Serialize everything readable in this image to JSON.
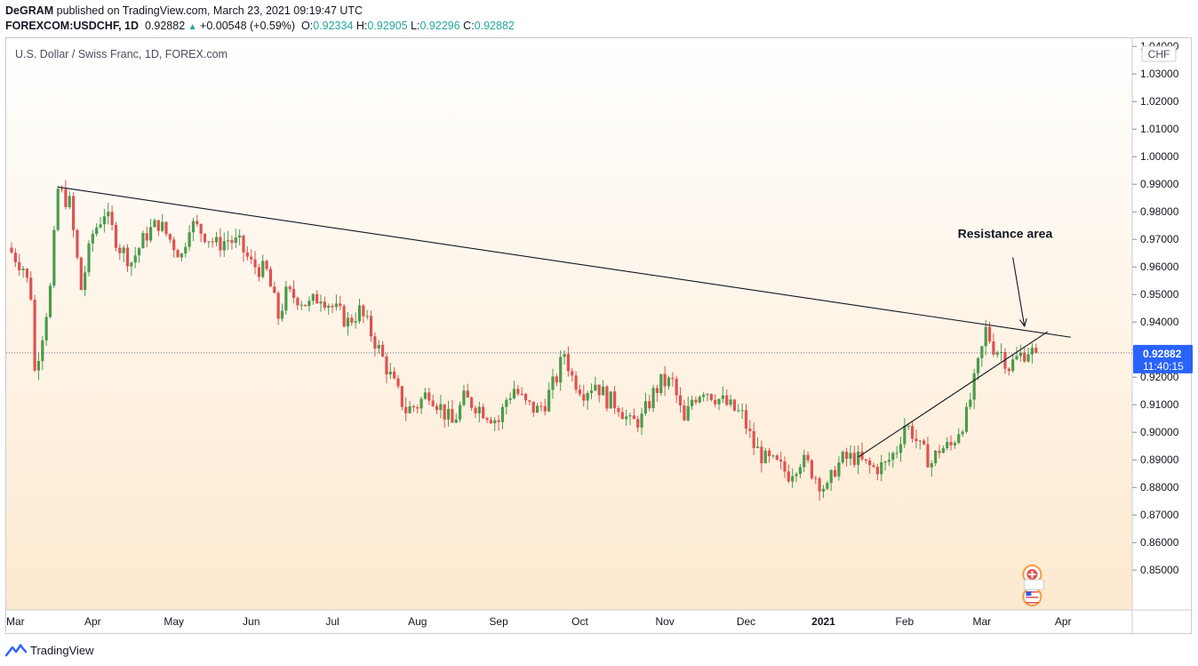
{
  "header": {
    "author": "DeGRAM",
    "published": "published on TradingView.com, March 23, 2021 09:19:47 UTC",
    "symbol": "FOREXCOM:USDCHF, 1D",
    "last": "0.92882",
    "change": "+0.00548 (+0.59%)",
    "o_label": "O:",
    "o": "0.92334",
    "h_label": "H:",
    "h": "0.92905",
    "l_label": "L:",
    "l": "0.92296",
    "c_label": "C:",
    "c": "0.92882"
  },
  "pane_title": "U.S. Dollar / Swiss Franc, 1D, FOREX.com",
  "footer": {
    "brand": "TradingView"
  },
  "colors": {
    "up": "#4c9a4c",
    "down": "#e05252",
    "price_badge": "#2962ff",
    "bg_top": "#ffffff",
    "bg_bottom": "#fde9cf"
  },
  "chart_data": {
    "type": "candlestick",
    "title": "U.S. Dollar / Swiss Franc, 1D, FOREX.com",
    "currency_label": "CHF",
    "ylim": [
      0.842,
      1.042
    ],
    "y_ticks": [
      "1.04000",
      "1.03000",
      "1.02000",
      "1.01000",
      "1.00000",
      "0.99000",
      "0.98000",
      "0.97000",
      "0.96000",
      "0.95000",
      "0.94000",
      "0.93000",
      "0.92000",
      "0.91000",
      "0.90000",
      "0.89000",
      "0.88000",
      "0.87000",
      "0.86000",
      "0.85000"
    ],
    "y_tick_values": [
      1.04,
      1.03,
      1.02,
      1.01,
      1.0,
      0.99,
      0.98,
      0.97,
      0.96,
      0.95,
      0.94,
      0.93,
      0.92,
      0.91,
      0.9,
      0.89,
      0.88,
      0.87,
      0.86,
      0.85
    ],
    "x_labels": [
      "Mar",
      "Apr",
      "May",
      "Jun",
      "Jul",
      "Aug",
      "Sep",
      "Oct",
      "Nov",
      "Dec",
      "2021",
      "Feb",
      "Mar",
      "Apr"
    ],
    "x_label_bars": [
      -2,
      21,
      42,
      62,
      83,
      105,
      126,
      147,
      169,
      190,
      210,
      231,
      251,
      272
    ],
    "total_bars": 274,
    "current_price": "0.92882",
    "current_price_value": 0.92882,
    "countdown": "11:40:15",
    "annotations": [
      {
        "type": "text",
        "text": "Resistance area",
        "at_bar": 257,
        "at_price": 0.9705
      },
      {
        "type": "arrow",
        "from_bar": 259,
        "from_price": 0.9635,
        "to_bar": 262,
        "to_price": 0.9385
      },
      {
        "type": "trendline",
        "name": "descending-resistance",
        "from_bar": 12,
        "from_price": 0.989,
        "to_bar": 274,
        "to_price": 0.9345
      },
      {
        "type": "trendline",
        "name": "ascending-support",
        "from_bar": 219,
        "from_price": 0.891,
        "to_bar": 268,
        "to_price": 0.9365
      }
    ],
    "anchors": [
      [
        0,
        0.967
      ],
      [
        4,
        0.96
      ],
      [
        6,
        0.95
      ],
      [
        7,
        0.922
      ],
      [
        9,
        0.936
      ],
      [
        11,
        0.952
      ],
      [
        13,
        0.988
      ],
      [
        16,
        0.983
      ],
      [
        19,
        0.952
      ],
      [
        22,
        0.972
      ],
      [
        25,
        0.98
      ],
      [
        29,
        0.967
      ],
      [
        32,
        0.962
      ],
      [
        36,
        0.972
      ],
      [
        39,
        0.976
      ],
      [
        42,
        0.97
      ],
      [
        45,
        0.964
      ],
      [
        47,
        0.976
      ],
      [
        51,
        0.972
      ],
      [
        54,
        0.968
      ],
      [
        57,
        0.97
      ],
      [
        60,
        0.968
      ],
      [
        63,
        0.961
      ],
      [
        67,
        0.958
      ],
      [
        70,
        0.942
      ],
      [
        72,
        0.95
      ],
      [
        75,
        0.949
      ],
      [
        78,
        0.946
      ],
      [
        81,
        0.95
      ],
      [
        85,
        0.944
      ],
      [
        88,
        0.94
      ],
      [
        91,
        0.944
      ],
      [
        93,
        0.939
      ],
      [
        96,
        0.93
      ],
      [
        100,
        0.917
      ],
      [
        103,
        0.908
      ],
      [
        106,
        0.91
      ],
      [
        109,
        0.915
      ],
      [
        112,
        0.909
      ],
      [
        115,
        0.903
      ],
      [
        118,
        0.912
      ],
      [
        121,
        0.91
      ],
      [
        124,
        0.907
      ],
      [
        127,
        0.904
      ],
      [
        129,
        0.912
      ],
      [
        131,
        0.916
      ],
      [
        134,
        0.91
      ],
      [
        137,
        0.908
      ],
      [
        139,
        0.911
      ],
      [
        142,
        0.92
      ],
      [
        144,
        0.929
      ],
      [
        146,
        0.92
      ],
      [
        149,
        0.915
      ],
      [
        152,
        0.918
      ],
      [
        155,
        0.912
      ],
      [
        158,
        0.91
      ],
      [
        161,
        0.903
      ],
      [
        164,
        0.905
      ],
      [
        167,
        0.914
      ],
      [
        169,
        0.918
      ],
      [
        172,
        0.918
      ],
      [
        175,
        0.903
      ],
      [
        177,
        0.912
      ],
      [
        180,
        0.916
      ],
      [
        183,
        0.913
      ],
      [
        186,
        0.91
      ],
      [
        190,
        0.906
      ],
      [
        193,
        0.895
      ],
      [
        196,
        0.89
      ],
      [
        199,
        0.888
      ],
      [
        202,
        0.885
      ],
      [
        205,
        0.89
      ],
      [
        207,
        0.888
      ],
      [
        210,
        0.882
      ],
      [
        212,
        0.879
      ],
      [
        214,
        0.887
      ],
      [
        216,
        0.89
      ],
      [
        219,
        0.891
      ],
      [
        222,
        0.888
      ],
      [
        224,
        0.887
      ],
      [
        227,
        0.888
      ],
      [
        230,
        0.894
      ],
      [
        232,
        0.903
      ],
      [
        234,
        0.9
      ],
      [
        236,
        0.894
      ],
      [
        239,
        0.889
      ],
      [
        241,
        0.894
      ],
      [
        244,
        0.895
      ],
      [
        246,
        0.901
      ],
      [
        248,
        0.906
      ],
      [
        250,
        0.918
      ],
      [
        252,
        0.93
      ],
      [
        253,
        0.937
      ],
      [
        255,
        0.931
      ],
      [
        257,
        0.929
      ],
      [
        259,
        0.924
      ],
      [
        262,
        0.928
      ],
      [
        264,
        0.93
      ],
      [
        265,
        0.929
      ]
    ]
  }
}
